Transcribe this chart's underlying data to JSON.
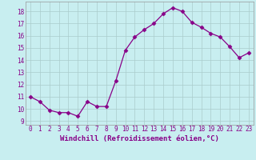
{
  "x": [
    0,
    1,
    2,
    3,
    4,
    5,
    6,
    7,
    8,
    9,
    10,
    11,
    12,
    13,
    14,
    15,
    16,
    17,
    18,
    19,
    20,
    21,
    22,
    23
  ],
  "y": [
    11.0,
    10.6,
    9.9,
    9.7,
    9.7,
    9.4,
    10.6,
    10.2,
    10.2,
    12.3,
    14.8,
    15.9,
    16.5,
    17.0,
    17.8,
    18.3,
    18.0,
    17.1,
    16.7,
    16.2,
    15.9,
    15.1,
    14.2,
    14.6
  ],
  "line_color": "#880088",
  "marker": "D",
  "marker_size": 2.5,
  "bg_color": "#c8eef0",
  "grid_color": "#aacccc",
  "xlabel": "Windchill (Refroidissement éolien,°C)",
  "ylabel_ticks": [
    9,
    10,
    11,
    12,
    13,
    14,
    15,
    16,
    17,
    18
  ],
  "xlim": [
    -0.5,
    23.5
  ],
  "ylim": [
    8.7,
    18.8
  ],
  "xticks": [
    0,
    1,
    2,
    3,
    4,
    5,
    6,
    7,
    8,
    9,
    10,
    11,
    12,
    13,
    14,
    15,
    16,
    17,
    18,
    19,
    20,
    21,
    22,
    23
  ],
  "font_color": "#880088",
  "tick_font_size": 5.5,
  "xlabel_font_size": 6.5
}
